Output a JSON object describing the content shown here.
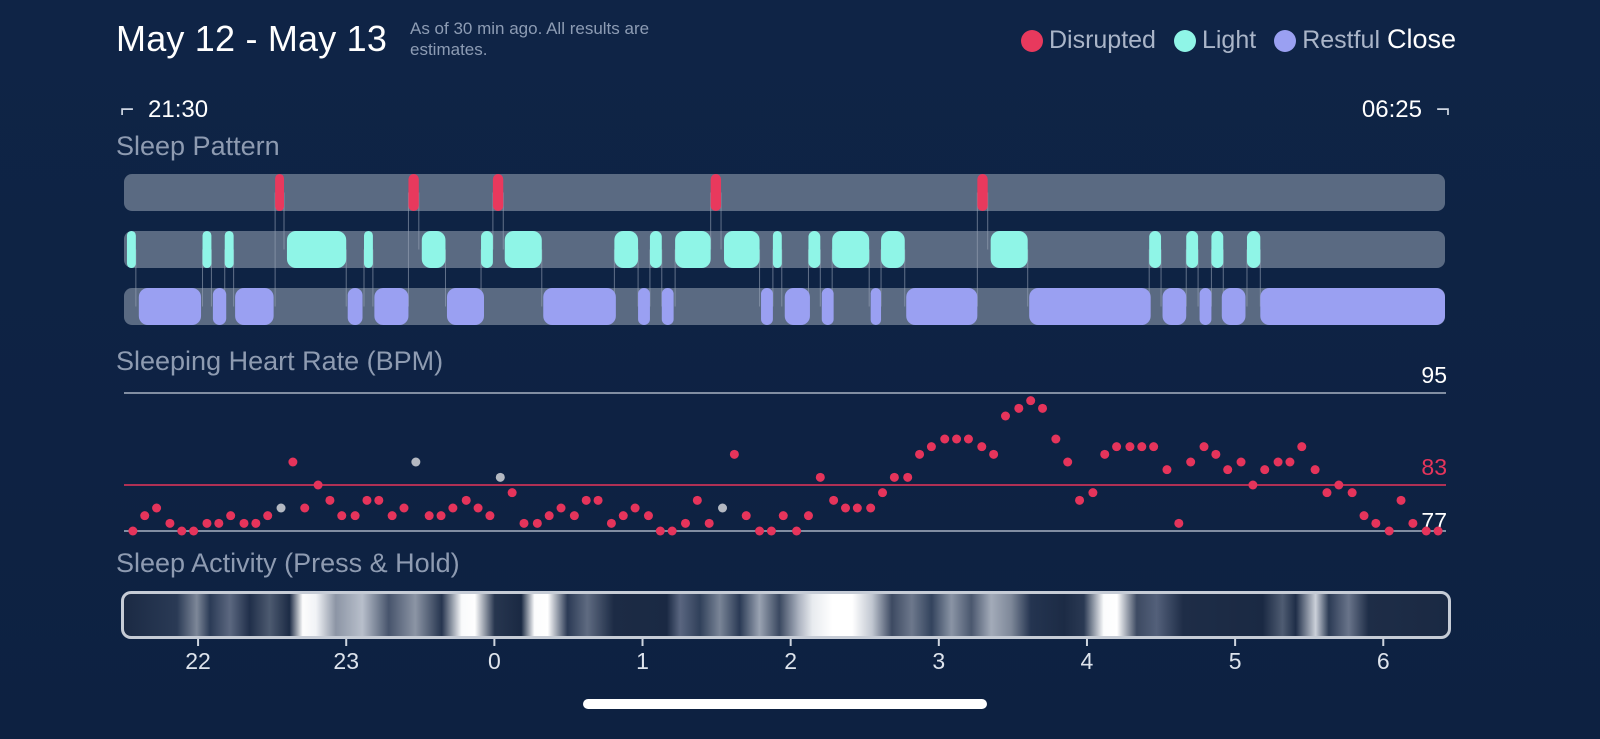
{
  "header": {
    "title": "May 12 - May 13",
    "subtitle": "As of 30 min ago. All results are estimates.",
    "close_label": "Close"
  },
  "legend": [
    {
      "label": "Disrupted",
      "color": "#e8395d"
    },
    {
      "label": "Light",
      "color": "#8ff5e7"
    },
    {
      "label": "Restful",
      "color": "#9aa0f2"
    }
  ],
  "timeline": {
    "start": "21:30",
    "end": "06:25"
  },
  "sections": {
    "sleep_pattern": "Sleep Pattern",
    "heart_rate": "Sleeping Heart Rate (BPM)",
    "activity": "Sleep Activity (Press & Hold)"
  },
  "colors": {
    "disrupted": "#e8395d",
    "light": "#8ff5e7",
    "restful": "#9aa0f2",
    "track": "#5a6a82",
    "hr_point": "#e5345b",
    "hr_point_muted": "#b4b9c2",
    "avg_line": "#e5345b",
    "guide_line": "#a7b1c2"
  },
  "chart_data": [
    {
      "type": "timeline",
      "title": "Sleep Pattern",
      "x_unit": "hours since midnight (negative = before midnight)",
      "xlim": [
        -2.5,
        6.4167
      ],
      "stages": [
        {
          "name": "Disrupted",
          "intervals": [
            [
              -1.48,
              -1.42
            ],
            [
              -0.58,
              -0.51
            ],
            [
              -0.01,
              0.06
            ],
            [
              1.46,
              1.53
            ],
            [
              3.26,
              3.33
            ]
          ]
        },
        {
          "name": "Light",
          "intervals": [
            [
              -2.48,
              -2.42
            ],
            [
              -1.97,
              -1.91
            ],
            [
              -1.82,
              -1.76
            ],
            [
              -1.4,
              -1.0
            ],
            [
              -0.88,
              -0.82
            ],
            [
              -0.49,
              -0.33
            ],
            [
              -0.09,
              -0.01
            ],
            [
              0.07,
              0.32
            ],
            [
              0.81,
              0.97
            ],
            [
              1.05,
              1.13
            ],
            [
              1.22,
              1.46
            ],
            [
              1.55,
              1.79
            ],
            [
              1.88,
              1.94
            ],
            [
              2.12,
              2.2
            ],
            [
              2.28,
              2.53
            ],
            [
              2.61,
              2.77
            ],
            [
              3.35,
              3.6
            ],
            [
              4.42,
              4.5
            ],
            [
              4.67,
              4.75
            ],
            [
              4.84,
              4.92
            ],
            [
              5.08,
              5.17
            ]
          ]
        },
        {
          "name": "Restful",
          "intervals": [
            [
              -2.4,
              -1.98
            ],
            [
              -1.9,
              -1.81
            ],
            [
              -1.75,
              -1.49
            ],
            [
              -0.99,
              -0.89
            ],
            [
              -0.81,
              -0.58
            ],
            [
              -0.32,
              -0.07
            ],
            [
              0.33,
              0.82
            ],
            [
              0.97,
              1.05
            ],
            [
              1.13,
              1.21
            ],
            [
              1.8,
              1.88
            ],
            [
              1.96,
              2.13
            ],
            [
              2.21,
              2.29
            ],
            [
              2.54,
              2.61
            ],
            [
              2.78,
              3.26
            ],
            [
              3.61,
              4.43
            ],
            [
              4.51,
              4.67
            ],
            [
              4.76,
              4.84
            ],
            [
              4.91,
              5.07
            ],
            [
              5.17,
              6.4167
            ]
          ]
        }
      ]
    },
    {
      "type": "scatter",
      "title": "Sleeping Heart Rate (BPM)",
      "y_unit": "BPM",
      "xlim": [
        -2.5,
        6.4167
      ],
      "ylim": [
        77,
        95
      ],
      "ref_lines": {
        "max": 95,
        "avg": 83,
        "min": 77
      },
      "points": [
        [
          -2.44,
          77
        ],
        [
          -2.36,
          79
        ],
        [
          -2.28,
          80
        ],
        [
          -2.19,
          78
        ],
        [
          -2.11,
          77
        ],
        [
          -2.03,
          77
        ],
        [
          -1.94,
          78
        ],
        [
          -1.86,
          78
        ],
        [
          -1.78,
          79
        ],
        [
          -1.69,
          78
        ],
        [
          -1.61,
          78
        ],
        [
          -1.53,
          79
        ],
        [
          -1.44,
          80,
          "m"
        ],
        [
          -1.36,
          86
        ],
        [
          -1.28,
          80
        ],
        [
          -1.19,
          83
        ],
        [
          -1.11,
          81
        ],
        [
          -1.03,
          79
        ],
        [
          -0.94,
          79
        ],
        [
          -0.86,
          81
        ],
        [
          -0.78,
          81
        ],
        [
          -0.69,
          79
        ],
        [
          -0.61,
          80
        ],
        [
          -0.53,
          86,
          "m"
        ],
        [
          -0.44,
          79
        ],
        [
          -0.36,
          79
        ],
        [
          -0.28,
          80
        ],
        [
          -0.19,
          81
        ],
        [
          -0.11,
          80
        ],
        [
          -0.03,
          79
        ],
        [
          0.04,
          84,
          "m"
        ],
        [
          0.12,
          82
        ],
        [
          0.2,
          78
        ],
        [
          0.29,
          78
        ],
        [
          0.37,
          79
        ],
        [
          0.45,
          80
        ],
        [
          0.54,
          79
        ],
        [
          0.62,
          81
        ],
        [
          0.7,
          81
        ],
        [
          0.79,
          78
        ],
        [
          0.87,
          79
        ],
        [
          0.95,
          80
        ],
        [
          1.04,
          79
        ],
        [
          1.12,
          77
        ],
        [
          1.2,
          77
        ],
        [
          1.29,
          78
        ],
        [
          1.37,
          81
        ],
        [
          1.45,
          78
        ],
        [
          1.54,
          80,
          "m"
        ],
        [
          1.62,
          87
        ],
        [
          1.7,
          79
        ],
        [
          1.79,
          77
        ],
        [
          1.87,
          77
        ],
        [
          1.95,
          79
        ],
        [
          2.04,
          77
        ],
        [
          2.12,
          79
        ],
        [
          2.2,
          84
        ],
        [
          2.29,
          81
        ],
        [
          2.37,
          80
        ],
        [
          2.45,
          80
        ],
        [
          2.54,
          80
        ],
        [
          2.62,
          82
        ],
        [
          2.7,
          84
        ],
        [
          2.79,
          84
        ],
        [
          2.87,
          87
        ],
        [
          2.95,
          88
        ],
        [
          3.04,
          89
        ],
        [
          3.12,
          89
        ],
        [
          3.2,
          89
        ],
        [
          3.29,
          88
        ],
        [
          3.37,
          87
        ],
        [
          3.45,
          92
        ],
        [
          3.54,
          93
        ],
        [
          3.62,
          94
        ],
        [
          3.7,
          93
        ],
        [
          3.79,
          89
        ],
        [
          3.87,
          86
        ],
        [
          3.95,
          81
        ],
        [
          4.04,
          82
        ],
        [
          4.12,
          87
        ],
        [
          4.2,
          88
        ],
        [
          4.29,
          88
        ],
        [
          4.37,
          88
        ],
        [
          4.45,
          88
        ],
        [
          4.54,
          85
        ],
        [
          4.62,
          78
        ],
        [
          4.7,
          86
        ],
        [
          4.79,
          88
        ],
        [
          4.87,
          87
        ],
        [
          4.95,
          85
        ],
        [
          5.04,
          86
        ],
        [
          5.12,
          83
        ],
        [
          5.2,
          85
        ],
        [
          5.29,
          86
        ],
        [
          5.37,
          86
        ],
        [
          5.45,
          88
        ],
        [
          5.54,
          85
        ],
        [
          5.62,
          82
        ],
        [
          5.7,
          83
        ],
        [
          5.79,
          82
        ],
        [
          5.87,
          79
        ],
        [
          5.95,
          78
        ],
        [
          6.04,
          77
        ],
        [
          6.12,
          81
        ],
        [
          6.2,
          78
        ],
        [
          6.29,
          77
        ],
        [
          6.37,
          77
        ]
      ]
    },
    {
      "type": "heatmap",
      "title": "Sleep Activity (Press & Hold)",
      "x_ticks": [
        "22",
        "23",
        "0",
        "1",
        "2",
        "3",
        "4",
        "5",
        "6"
      ],
      "tick_hours": [
        -2,
        -1,
        0,
        1,
        2,
        3,
        4,
        5,
        6
      ]
    }
  ]
}
